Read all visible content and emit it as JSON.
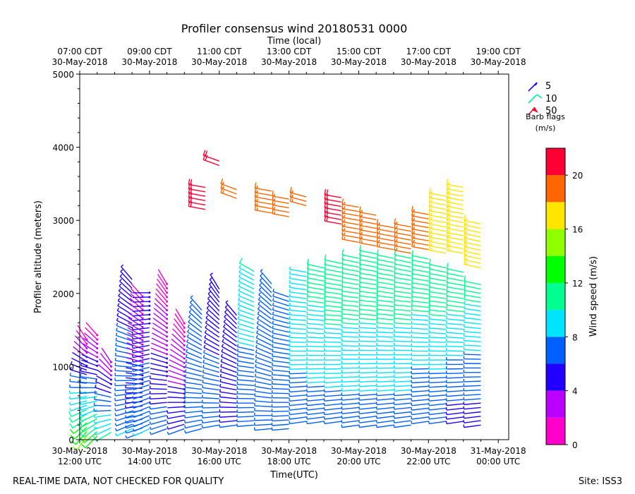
{
  "chart_data": {
    "type": "wind-barb-profile",
    "title": "Profiler consensus wind 20180531 0000",
    "top_axis_label": "Time (local)",
    "xlabel": "Time(UTC)",
    "ylabel": "Profiler altitude (meters)",
    "x_range_hours_utc": [
      12.0,
      24.3
    ],
    "ylim": [
      0,
      5000
    ],
    "y_ticks": [
      0,
      1000,
      2000,
      3000,
      4000,
      5000
    ],
    "x_ticks_utc": [
      {
        "hour": 12,
        "date": "30-May-2018",
        "time": "12:00 UTC"
      },
      {
        "hour": 14,
        "date": "30-May-2018",
        "time": "14:00 UTC"
      },
      {
        "hour": 16,
        "date": "30-May-2018",
        "time": "16:00 UTC"
      },
      {
        "hour": 18,
        "date": "30-May-2018",
        "time": "18:00 UTC"
      },
      {
        "hour": 20,
        "date": "30-May-2018",
        "time": "20:00 UTC"
      },
      {
        "hour": 22,
        "date": "30-May-2018",
        "time": "22:00 UTC"
      },
      {
        "hour": 24,
        "date": "31-May-2018",
        "time": "00:00 UTC"
      }
    ],
    "x_ticks_local": [
      {
        "hour": 12,
        "time": "07:00 CDT",
        "date": "30-May-2018"
      },
      {
        "hour": 14,
        "time": "09:00 CDT",
        "date": "30-May-2018"
      },
      {
        "hour": 16,
        "time": "11:00 CDT",
        "date": "30-May-2018"
      },
      {
        "hour": 18,
        "time": "13:00 CDT",
        "date": "30-May-2018"
      },
      {
        "hour": 20,
        "time": "15:00 CDT",
        "date": "30-May-2018"
      },
      {
        "hour": 22,
        "time": "17:00 CDT",
        "date": "30-May-2018"
      },
      {
        "hour": 24,
        "time": "19:00 CDT",
        "date": "30-May-2018"
      }
    ],
    "barb_legend": {
      "entries": [
        {
          "label": "5",
          "color": "#1a00ff"
        },
        {
          "label": "10",
          "color": "#00f0a0"
        },
        {
          "label": "50",
          "color": "#ff0030"
        }
      ],
      "caption_line1": "Barb flags",
      "caption_line2": "(m/s)"
    },
    "colorbar": {
      "label": "Wind speed (m/s)",
      "range": [
        0,
        22
      ],
      "ticks": [
        0,
        4,
        8,
        12,
        16,
        20
      ],
      "bins": [
        {
          "from": 0,
          "to": 2,
          "color": "#ff00cc"
        },
        {
          "from": 2,
          "to": 4,
          "color": "#bb00ff"
        },
        {
          "from": 4,
          "to": 6,
          "color": "#2200ff"
        },
        {
          "from": 6,
          "to": 8,
          "color": "#0060ff"
        },
        {
          "from": 8,
          "to": 10,
          "color": "#00e5ff"
        },
        {
          "from": 10,
          "to": 12,
          "color": "#00ff90"
        },
        {
          "from": 12,
          "to": 14,
          "color": "#00ff00"
        },
        {
          "from": 14,
          "to": 16,
          "color": "#90ff00"
        },
        {
          "from": 16,
          "to": 18,
          "color": "#ffe600"
        },
        {
          "from": 18,
          "to": 20,
          "color": "#ff6600"
        },
        {
          "from": 20,
          "to": 22,
          "color": "#ff0033"
        }
      ]
    },
    "series": [
      {
        "time": 12.2,
        "min_alt": 50,
        "max_alt": 1400,
        "low_speed": 14,
        "high_speed": 1,
        "low_dir": 215,
        "high_dir": 330
      },
      {
        "time": 12.5,
        "min_alt": 50,
        "max_alt": 1450,
        "low_speed": 13,
        "high_speed": 1,
        "low_dir": 225,
        "high_dir": 320
      },
      {
        "time": 12.9,
        "min_alt": 100,
        "max_alt": 1100,
        "low_speed": 10,
        "high_speed": 2,
        "low_dir": 240,
        "high_dir": 330
      },
      {
        "time": 13.5,
        "min_alt": 150,
        "max_alt": 2200,
        "low_speed": 8,
        "high_speed": 5,
        "low_dir": 245,
        "high_dir": 320
      },
      {
        "time": 13.8,
        "min_alt": 100,
        "max_alt": 2000,
        "low_speed": 7,
        "high_speed": 1,
        "low_dir": 250,
        "high_dir": 320
      },
      {
        "time": 14.0,
        "min_alt": 150,
        "max_alt": 2050,
        "low_speed": 8,
        "high_speed": 4,
        "low_dir": 245,
        "high_dir": 270
      },
      {
        "time": 14.5,
        "min_alt": 150,
        "max_alt": 2150,
        "low_speed": 7,
        "high_speed": 1,
        "low_dir": 250,
        "high_dir": 330
      },
      {
        "time": 15.0,
        "min_alt": 150,
        "max_alt": 1600,
        "low_speed": 6,
        "high_speed": 1,
        "low_dir": 250,
        "high_dir": 330
      },
      {
        "time": 15.5,
        "min_alt": 150,
        "max_alt": 1800,
        "low_speed": 6,
        "high_speed": 6,
        "low_dir": 255,
        "high_dir": 320
      },
      {
        "time": 16.0,
        "min_alt": 200,
        "max_alt": 2100,
        "low_speed": 7,
        "high_speed": 5,
        "low_dir": 260,
        "high_dir": 330
      },
      {
        "time": 16.5,
        "min_alt": 200,
        "max_alt": 1700,
        "low_speed": 6,
        "high_speed": 5,
        "low_dir": 262,
        "high_dir": 320
      },
      {
        "time": 17.0,
        "min_alt": 200,
        "max_alt": 2300,
        "low_speed": 6,
        "high_speed": 10,
        "low_dir": 265,
        "high_dir": 300
      },
      {
        "time": 17.5,
        "min_alt": 150,
        "max_alt": 2150,
        "low_speed": 6,
        "high_speed": 6,
        "low_dir": 265,
        "high_dir": 320
      },
      {
        "time": 18.0,
        "min_alt": 150,
        "max_alt": 2000,
        "low_speed": 7,
        "high_speed": 8,
        "low_dir": 265,
        "high_dir": 290
      },
      {
        "time": 18.5,
        "min_alt": 250,
        "max_alt": 2300,
        "low_speed": 7,
        "high_speed": 10,
        "low_dir": 262,
        "high_dir": 280
      },
      {
        "time": 19.0,
        "min_alt": 250,
        "max_alt": 2350,
        "low_speed": 7,
        "high_speed": 11,
        "low_dir": 262,
        "high_dir": 282
      },
      {
        "time": 19.5,
        "min_alt": 250,
        "max_alt": 2450,
        "low_speed": 7,
        "high_speed": 12,
        "low_dir": 262,
        "high_dir": 282
      },
      {
        "time": 20.0,
        "min_alt": 200,
        "max_alt": 2500,
        "low_speed": 7,
        "high_speed": 12,
        "low_dir": 262,
        "high_dir": 282
      },
      {
        "time": 20.5,
        "min_alt": 200,
        "max_alt": 2550,
        "low_speed": 7,
        "high_speed": 12,
        "low_dir": 262,
        "high_dir": 282
      },
      {
        "time": 21.0,
        "min_alt": 200,
        "max_alt": 2500,
        "low_speed": 7,
        "high_speed": 12,
        "low_dir": 262,
        "high_dir": 282
      },
      {
        "time": 21.5,
        "min_alt": 200,
        "max_alt": 2500,
        "low_speed": 7,
        "high_speed": 12,
        "low_dir": 262,
        "high_dir": 282
      },
      {
        "time": 22.0,
        "min_alt": 250,
        "max_alt": 2500,
        "low_speed": 6,
        "high_speed": 12,
        "low_dir": 262,
        "high_dir": 282
      },
      {
        "time": 22.5,
        "min_alt": 250,
        "max_alt": 2400,
        "low_speed": 6,
        "high_speed": 12,
        "low_dir": 262,
        "high_dir": 282
      },
      {
        "time": 23.0,
        "min_alt": 250,
        "max_alt": 2300,
        "low_speed": 5,
        "high_speed": 12,
        "low_dir": 262,
        "high_dir": 282
      },
      {
        "time": 23.5,
        "min_alt": 200,
        "max_alt": 2150,
        "low_speed": 5,
        "high_speed": 11,
        "low_dir": 262,
        "high_dir": 282
      }
    ],
    "upper_layer": [
      {
        "time": 15.6,
        "min_alt": 3150,
        "max_alt": 3500,
        "speed": 20,
        "dir": 280
      },
      {
        "time": 16.0,
        "min_alt": 3750,
        "max_alt": 3850,
        "speed": 21,
        "dir": 290
      },
      {
        "time": 16.5,
        "min_alt": 3300,
        "max_alt": 3450,
        "speed": 18,
        "dir": 290
      },
      {
        "time": 17.5,
        "min_alt": 3100,
        "max_alt": 3400,
        "speed": 19,
        "dir": 280
      },
      {
        "time": 18.0,
        "min_alt": 3050,
        "max_alt": 3300,
        "speed": 19,
        "dir": 280
      },
      {
        "time": 18.5,
        "min_alt": 3200,
        "max_alt": 3350,
        "speed": 18,
        "dir": 285
      },
      {
        "time": 19.5,
        "min_alt": 2950,
        "max_alt": 3350,
        "speed": 20,
        "dir": 280
      },
      {
        "time": 20.0,
        "min_alt": 2700,
        "max_alt": 3200,
        "speed": 19,
        "dir": 280
      },
      {
        "time": 20.5,
        "min_alt": 2650,
        "max_alt": 3100,
        "speed": 19,
        "dir": 280
      },
      {
        "time": 21.0,
        "min_alt": 2600,
        "max_alt": 2900,
        "speed": 19,
        "dir": 280
      },
      {
        "time": 21.5,
        "min_alt": 2550,
        "max_alt": 2950,
        "speed": 19,
        "dir": 280
      },
      {
        "time": 22.0,
        "min_alt": 2600,
        "max_alt": 3100,
        "speed": 18,
        "dir": 280
      },
      {
        "time": 22.5,
        "min_alt": 2550,
        "max_alt": 3350,
        "speed": 17,
        "dir": 280
      },
      {
        "time": 23.0,
        "min_alt": 2550,
        "max_alt": 3500,
        "speed": 16,
        "dir": 280
      },
      {
        "time": 23.5,
        "min_alt": 2350,
        "max_alt": 2950,
        "speed": 16,
        "dir": 282
      }
    ]
  },
  "footer": {
    "left": "REAL-TIME DATA, NOT CHECKED FOR QUALITY",
    "right": "Site: ISS3"
  }
}
